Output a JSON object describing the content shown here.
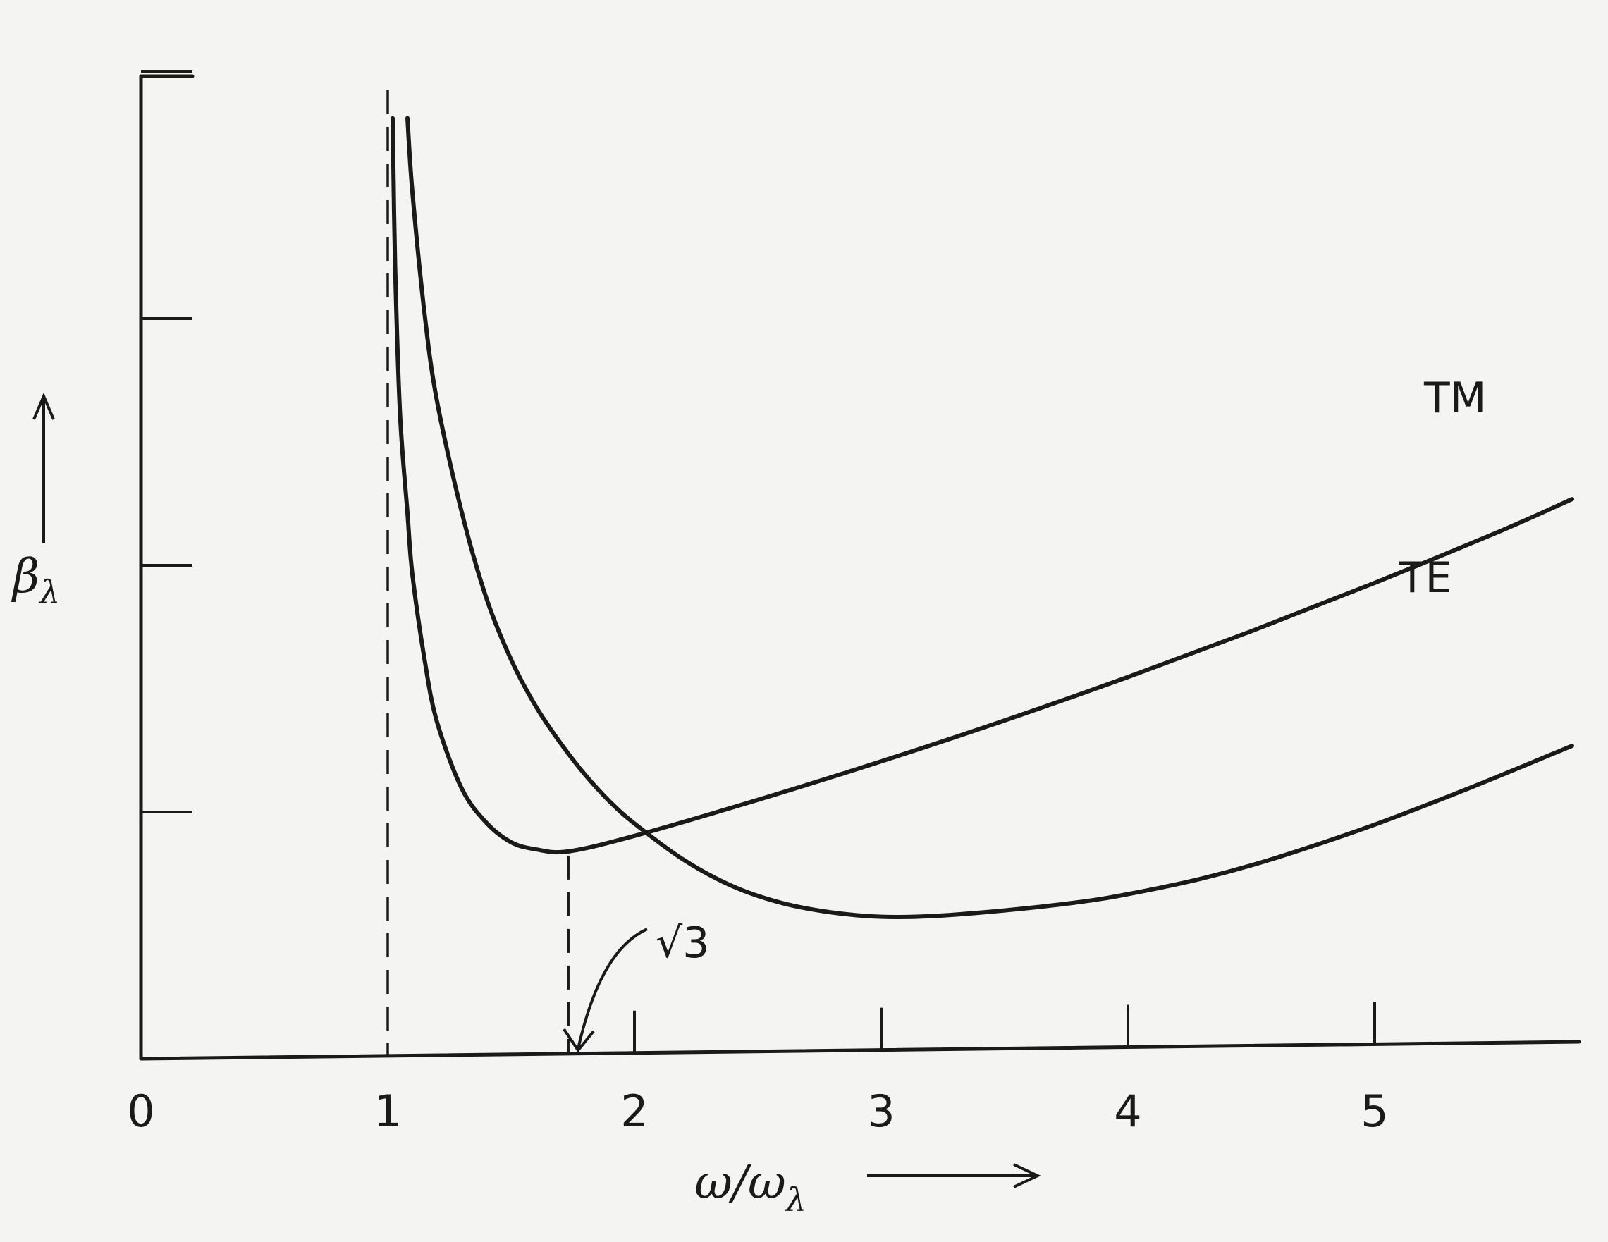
{
  "chart_data": {
    "type": "line",
    "title": "",
    "xlabel": "ω/ω",
    "xlabel_sub": "λ",
    "ylabel": "β",
    "ylabel_sub": "λ",
    "xlim": [
      0,
      5.8
    ],
    "ylim": [
      0,
      4
    ],
    "x_ticks": [
      0,
      1,
      2,
      3,
      4,
      5
    ],
    "x_tick_labels": [
      "0",
      "1",
      "2",
      "3",
      "4",
      "5"
    ],
    "y_ticks": [
      1,
      2,
      3,
      4
    ],
    "y_tick_labels": [],
    "grid": false,
    "legend": "none",
    "series": [
      {
        "name": "TM",
        "x": [
          1.08,
          1.1,
          1.15,
          1.2,
          1.3,
          1.4,
          1.5,
          1.6,
          1.7,
          1.8,
          1.9,
          2.0,
          2.2,
          2.4,
          2.6,
          2.8,
          3.0,
          3.2,
          3.5,
          3.8,
          4.0,
          4.3,
          4.6,
          5.0,
          5.4,
          5.8
        ],
        "y": [
          3.8,
          3.5,
          3.0,
          2.65,
          2.2,
          1.85,
          1.6,
          1.41,
          1.26,
          1.13,
          1.02,
          0.93,
          0.78,
          0.67,
          0.6,
          0.56,
          0.54,
          0.54,
          0.56,
          0.59,
          0.62,
          0.68,
          0.76,
          0.89,
          1.04,
          1.2
        ]
      },
      {
        "name": "TE",
        "x": [
          1.02,
          1.03,
          1.05,
          1.08,
          1.1,
          1.15,
          1.2,
          1.3,
          1.4,
          1.5,
          1.6,
          1.732,
          2.0,
          2.5,
          3.0,
          3.5,
          4.0,
          4.5,
          5.0,
          5.5,
          5.8
        ],
        "y": [
          3.8,
          3.2,
          2.6,
          2.2,
          1.95,
          1.6,
          1.35,
          1.08,
          0.94,
          0.86,
          0.83,
          0.82,
          0.88,
          1.02,
          1.17,
          1.33,
          1.5,
          1.68,
          1.87,
          2.07,
          2.2
        ]
      }
    ],
    "reference_lines": [
      {
        "x": 1.0,
        "style": "dashed"
      },
      {
        "x": 1.732,
        "style": "dashed"
      }
    ],
    "annotations": [
      {
        "text": "√3",
        "x": 1.732
      }
    ]
  }
}
